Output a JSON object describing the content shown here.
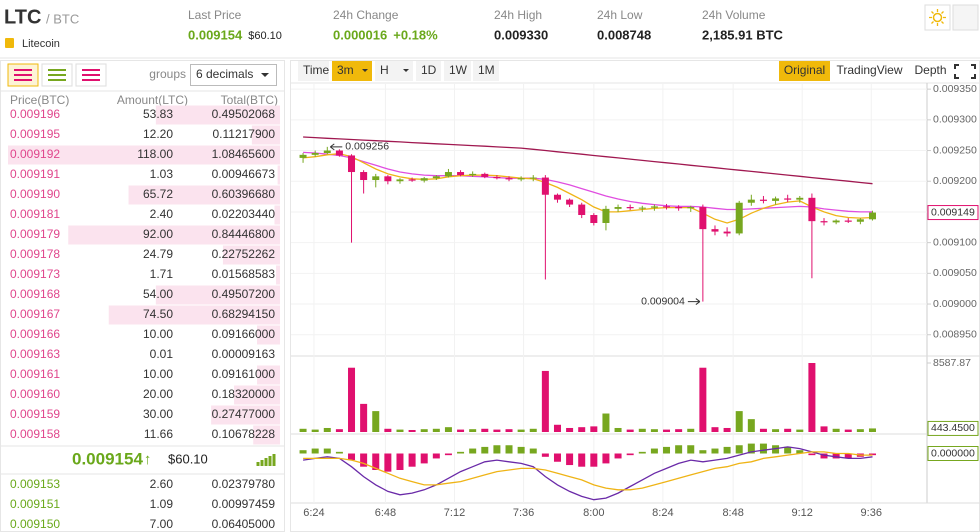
{
  "header": {
    "symbol": "LTC",
    "quote": "/ BTC",
    "name": "Litecoin",
    "stats": [
      {
        "label": "Last Price",
        "value": "0.009154",
        "extra": "$60.10"
      },
      {
        "label": "24h Change",
        "value": "0.000016",
        "extra": "+0.18%"
      },
      {
        "label": "24h High",
        "value": "0.009330"
      },
      {
        "label": "24h Low",
        "value": "0.008748"
      },
      {
        "label": "24h Volume",
        "value": "2,185.91 BTC"
      }
    ]
  },
  "order_book": {
    "groups_label": "groups",
    "groups_select": "6 decimals",
    "columns": [
      "Price(BTC)",
      "Amount(LTC)",
      "Total(BTC)"
    ],
    "asks": [
      [
        "0.009196",
        "53.83",
        "0.49502068"
      ],
      [
        "0.009195",
        "12.20",
        "0.11217900"
      ],
      [
        "0.009192",
        "118.00",
        "1.08465600"
      ],
      [
        "0.009191",
        "1.03",
        "0.00946673"
      ],
      [
        "0.009190",
        "65.72",
        "0.60396680"
      ],
      [
        "0.009181",
        "2.40",
        "0.02203440"
      ],
      [
        "0.009179",
        "92.00",
        "0.84446800"
      ],
      [
        "0.009178",
        "24.79",
        "0.22752262"
      ],
      [
        "0.009173",
        "1.71",
        "0.01568583"
      ],
      [
        "0.009168",
        "54.00",
        "0.49507200"
      ],
      [
        "0.009167",
        "74.50",
        "0.68294150"
      ],
      [
        "0.009166",
        "10.00",
        "0.09166000"
      ],
      [
        "0.009163",
        "0.01",
        "0.00009163"
      ],
      [
        "0.009161",
        "10.00",
        "0.09161000"
      ],
      [
        "0.009160",
        "20.00",
        "0.18320000"
      ],
      [
        "0.009159",
        "30.00",
        "0.27477000"
      ],
      [
        "0.009158",
        "11.66",
        "0.10678228"
      ]
    ],
    "last_price": "0.009154",
    "last_arrow": "↑",
    "last_usd": "$60.10",
    "bids": [
      [
        "0.009153",
        "2.60",
        "0.02379780"
      ],
      [
        "0.009151",
        "1.09",
        "0.00997459"
      ],
      [
        "0.009150",
        "7.00",
        "0.06405000"
      ]
    ]
  },
  "toolbar": {
    "intervals": [
      "Time",
      "3m",
      "H",
      "1D",
      "1W",
      "1M"
    ],
    "views": [
      "Original",
      "TradingView",
      "Depth"
    ]
  },
  "chart_data": {
    "type": "candlestick",
    "up_color": "#77a71f",
    "down_color": "#e0106e",
    "open": [
      0.009238,
      0.009243,
      0.009246,
      0.00925,
      0.009242,
      0.009215,
      0.009202,
      0.009208,
      0.0092,
      0.009203,
      0.009201,
      0.009205,
      0.009208,
      0.009215,
      0.00921,
      0.009212,
      0.009207,
      0.009205,
      0.009203,
      0.009205,
      0.009206,
      0.009178,
      0.00917,
      0.009162,
      0.009145,
      0.009132,
      0.009155,
      0.009158,
      0.009156,
      0.009157,
      0.009159,
      0.009158,
      0.009156,
      0.009158,
      0.009122,
      0.009118,
      0.009115,
      0.009165,
      0.00917,
      0.009168,
      0.009172,
      0.00917,
      0.009173,
      0.009135,
      0.009133,
      0.009136,
      0.009134,
      0.009138
    ],
    "high": [
      0.009246,
      0.00925,
      0.009256,
      0.009252,
      0.009244,
      0.009218,
      0.009212,
      0.00921,
      0.009205,
      0.009206,
      0.009207,
      0.00921,
      0.00922,
      0.009218,
      0.009216,
      0.009214,
      0.00921,
      0.009208,
      0.009208,
      0.00921,
      0.00921,
      0.00918,
      0.009172,
      0.009165,
      0.009148,
      0.00916,
      0.009162,
      0.009162,
      0.00916,
      0.009162,
      0.009163,
      0.009161,
      0.00916,
      0.009162,
      0.009128,
      0.009125,
      0.009168,
      0.009178,
      0.009176,
      0.009175,
      0.009178,
      0.009176,
      0.00918,
      0.00914,
      0.009138,
      0.00914,
      0.00914,
      0.009152
    ],
    "low": [
      0.00923,
      0.00924,
      0.009244,
      0.00924,
      0.0091,
      0.00918,
      0.00919,
      0.009195,
      0.009196,
      0.009199,
      0.009198,
      0.009202,
      0.009206,
      0.009208,
      0.009207,
      0.009205,
      0.009203,
      0.0092,
      0.0092,
      0.0092,
      0.00904,
      0.009165,
      0.009158,
      0.00914,
      0.009128,
      0.00912,
      0.00915,
      0.009153,
      0.00915,
      0.009152,
      0.009154,
      0.009152,
      0.00915,
      0.009004,
      0.009112,
      0.00911,
      0.009112,
      0.00916,
      0.009164,
      0.009162,
      0.009166,
      0.009165,
      0.009042,
      0.009128,
      0.00913,
      0.009132,
      0.00913,
      0.009136
    ],
    "close": [
      0.009243,
      0.009246,
      0.00925,
      0.009242,
      0.009215,
      0.009202,
      0.009208,
      0.0092,
      0.009203,
      0.009201,
      0.009205,
      0.009208,
      0.009215,
      0.00921,
      0.009212,
      0.009207,
      0.009205,
      0.009203,
      0.009205,
      0.009206,
      0.009178,
      0.00917,
      0.009162,
      0.009145,
      0.009132,
      0.009155,
      0.009158,
      0.009156,
      0.009157,
      0.009159,
      0.009158,
      0.009156,
      0.009158,
      0.009122,
      0.009118,
      0.009115,
      0.009165,
      0.00917,
      0.009168,
      0.009172,
      0.00917,
      0.009173,
      0.009135,
      0.009133,
      0.009136,
      0.009134,
      0.009138,
      0.009149
    ],
    "series": [
      {
        "color": "#a01850",
        "values": [
          0.009272,
          0.009271,
          0.00927,
          0.009269,
          0.009268,
          0.009267,
          0.009266,
          0.009265,
          0.009264,
          0.009263,
          0.009262,
          0.009261,
          0.00926,
          0.009259,
          0.009258,
          0.009257,
          0.009256,
          0.009255,
          0.009254,
          0.009252,
          0.00925,
          0.009248,
          0.009246,
          0.009244,
          0.009242,
          0.00924,
          0.009238,
          0.009236,
          0.009234,
          0.009232,
          0.00923,
          0.009228,
          0.009226,
          0.009224,
          0.009222,
          0.00922,
          0.009218,
          0.009216,
          0.009214,
          0.009212,
          0.00921,
          0.009208,
          0.009206,
          0.009204,
          0.009202,
          0.0092,
          0.009198,
          0.009196
        ]
      },
      {
        "color": "#e04ee0",
        "values": [
          0.009247,
          0.009246,
          0.009244,
          0.009242,
          0.009238,
          0.009232,
          0.009226,
          0.00922,
          0.009215,
          0.009212,
          0.00921,
          0.009209,
          0.009209,
          0.009209,
          0.009208,
          0.009207,
          0.009206,
          0.009205,
          0.009205,
          0.009205,
          0.009203,
          0.009199,
          0.009194,
          0.009188,
          0.009182,
          0.009176,
          0.009171,
          0.009167,
          0.009164,
          0.009162,
          0.00916,
          0.009159,
          0.009159,
          0.009158,
          0.009156,
          0.009154,
          0.009154,
          0.009155,
          0.009156,
          0.009157,
          0.009158,
          0.009159,
          0.009158,
          0.009155,
          0.009153,
          0.009151,
          0.00915,
          0.00915
        ]
      },
      {
        "color": "#efb416",
        "values": [
          0.009238,
          0.00924,
          0.009243,
          0.009245,
          0.00924,
          0.00923,
          0.00922,
          0.009212,
          0.009207,
          0.009204,
          0.009203,
          0.009204,
          0.009207,
          0.009209,
          0.00921,
          0.00921,
          0.009209,
          0.009207,
          0.009205,
          0.009204,
          0.009198,
          0.00919,
          0.00918,
          0.00917,
          0.009158,
          0.00915,
          0.00915,
          0.009152,
          0.009154,
          0.009156,
          0.009157,
          0.009157,
          0.009157,
          0.009148,
          0.009138,
          0.009132,
          0.009138,
          0.009148,
          0.009156,
          0.009162,
          0.009166,
          0.009168,
          0.009158,
          0.00915,
          0.009144,
          0.009141,
          0.00914,
          0.009141
        ]
      }
    ],
    "ylim": [
      0.008917,
      0.00936
    ],
    "yticks": [
      {
        "value": 0.00935,
        "label": "0.009350"
      },
      {
        "value": 0.0093,
        "label": "0.009300"
      },
      {
        "value": 0.00925,
        "label": "0.009250"
      },
      {
        "value": 0.0092,
        "label": "0.009200"
      },
      {
        "value": 0.00915,
        "label": "0.009150"
      },
      {
        "value": 0.0091,
        "label": "0.009100"
      },
      {
        "value": 0.00905,
        "label": "0.009050"
      },
      {
        "value": 0.009,
        "label": "0.009000"
      },
      {
        "value": 0.00895,
        "label": "0.008950"
      }
    ],
    "xlim": [
      -0.5,
      51.5
    ],
    "xticks": [
      {
        "value": 0.9,
        "label": "6:24"
      },
      {
        "value": 6.8,
        "label": "6:48"
      },
      {
        "value": 12.5,
        "label": "7:12"
      },
      {
        "value": 18.2,
        "label": "7:36"
      },
      {
        "value": 24,
        "label": "8:00"
      },
      {
        "value": 29.7,
        "label": "8:24"
      },
      {
        "value": 35.5,
        "label": "8:48"
      },
      {
        "value": 41.2,
        "label": "9:12"
      },
      {
        "value": 46.9,
        "label": "9:36"
      }
    ],
    "high_label": "0.009256",
    "low_label": "0.009004",
    "last_label": "0.009149",
    "volume": {
      "values": [
        400,
        300,
        500,
        350,
        8000,
        3500,
        2600,
        400,
        300,
        250,
        350,
        400,
        600,
        300,
        350,
        400,
        300,
        350,
        300,
        400,
        7600,
        900,
        500,
        600,
        700,
        2300,
        500,
        300,
        400,
        350,
        300,
        350,
        400,
        8000,
        600,
        500,
        2600,
        1600,
        400,
        350,
        400,
        300,
        8587.87,
        700,
        400,
        300,
        350,
        443.45
      ],
      "ylim": [
        0,
        8587.87
      ],
      "yticks": [
        {
          "value": 8587.87,
          "label": "8587.87"
        }
      ],
      "last_label": "443.4500"
    },
    "macd": {
      "histogram": [
        2e-06,
        3e-06,
        3e-06,
        1e-06,
        -4e-06,
        -8e-06,
        -1e-05,
        -1.1e-05,
        -1e-05,
        -8e-06,
        -6e-06,
        -3e-06,
        -1e-06,
        1e-06,
        3e-06,
        4e-06,
        5e-06,
        5e-06,
        4e-06,
        3e-06,
        -2e-06,
        -5e-06,
        -7e-06,
        -8e-06,
        -8e-06,
        -6e-06,
        -3e-06,
        -1e-06,
        1e-06,
        3e-06,
        4e-06,
        5e-06,
        5e-06,
        2e-06,
        3e-06,
        4e-06,
        5e-06,
        6e-06,
        6e-06,
        5e-06,
        4e-06,
        2e-06,
        -1e-06,
        -3e-06,
        -3e-06,
        -3e-06,
        -2e-06,
        -1e-06
      ],
      "macd": [
        -4e-06,
        -3e-06,
        -2e-06,
        -3e-06,
        -8e-06,
        -1.4e-05,
        -1.9e-05,
        -2.3e-05,
        -2.5e-05,
        -2.4e-05,
        -2.2e-05,
        -1.9e-05,
        -1.5e-05,
        -1.1e-05,
        -8e-06,
        -5e-06,
        -4e-06,
        -5e-06,
        -6e-06,
        -8e-06,
        -1.4e-05,
        -1.9e-05,
        -2.3e-05,
        -2.6e-05,
        -2.8e-05,
        -2.7e-05,
        -2.4e-05,
        -2e-05,
        -1.6e-05,
        -1.2e-05,
        -9e-06,
        -6e-06,
        -4e-06,
        -5e-06,
        -4e-06,
        -3e-06,
        -1e-06,
        1e-06,
        2e-06,
        3e-06,
        4e-06,
        3e-06,
        1e-06,
        -1e-06,
        -2e-06,
        -3e-06,
        -3e-06,
        -2e-06
      ],
      "signal": [
        -3e-06,
        -3e-06,
        -3e-06,
        -3e-06,
        -4e-06,
        -6e-06,
        -9e-06,
        -1.2e-05,
        -1.5e-05,
        -1.7e-05,
        -1.9e-05,
        -1.9e-05,
        -1.8e-05,
        -1.7e-05,
        -1.5e-05,
        -1.3e-05,
        -1.1e-05,
        -1e-05,
        -9e-06,
        -9e-06,
        -1e-05,
        -1.2e-05,
        -1.4e-05,
        -1.6e-05,
        -1.9e-05,
        -2.1e-05,
        -2.2e-05,
        -2.2e-05,
        -2.1e-05,
        -1.9e-05,
        -1.7e-05,
        -1.5e-05,
        -1.3e-05,
        -1.1e-05,
        -9e-06,
        -8e-06,
        -6e-06,
        -5e-06,
        -3e-06,
        -2e-06,
        -1e-06,
        0,
        1e-06,
        1e-06,
        0,
        0,
        -1e-06,
        -1e-06
      ],
      "macd_color": "#6a2aa8",
      "signal_color": "#efb416",
      "ylim": [
        -3e-05,
        1e-05
      ],
      "yticks": [
        {
          "value": 0,
          "label": "0.000000"
        }
      ]
    }
  }
}
